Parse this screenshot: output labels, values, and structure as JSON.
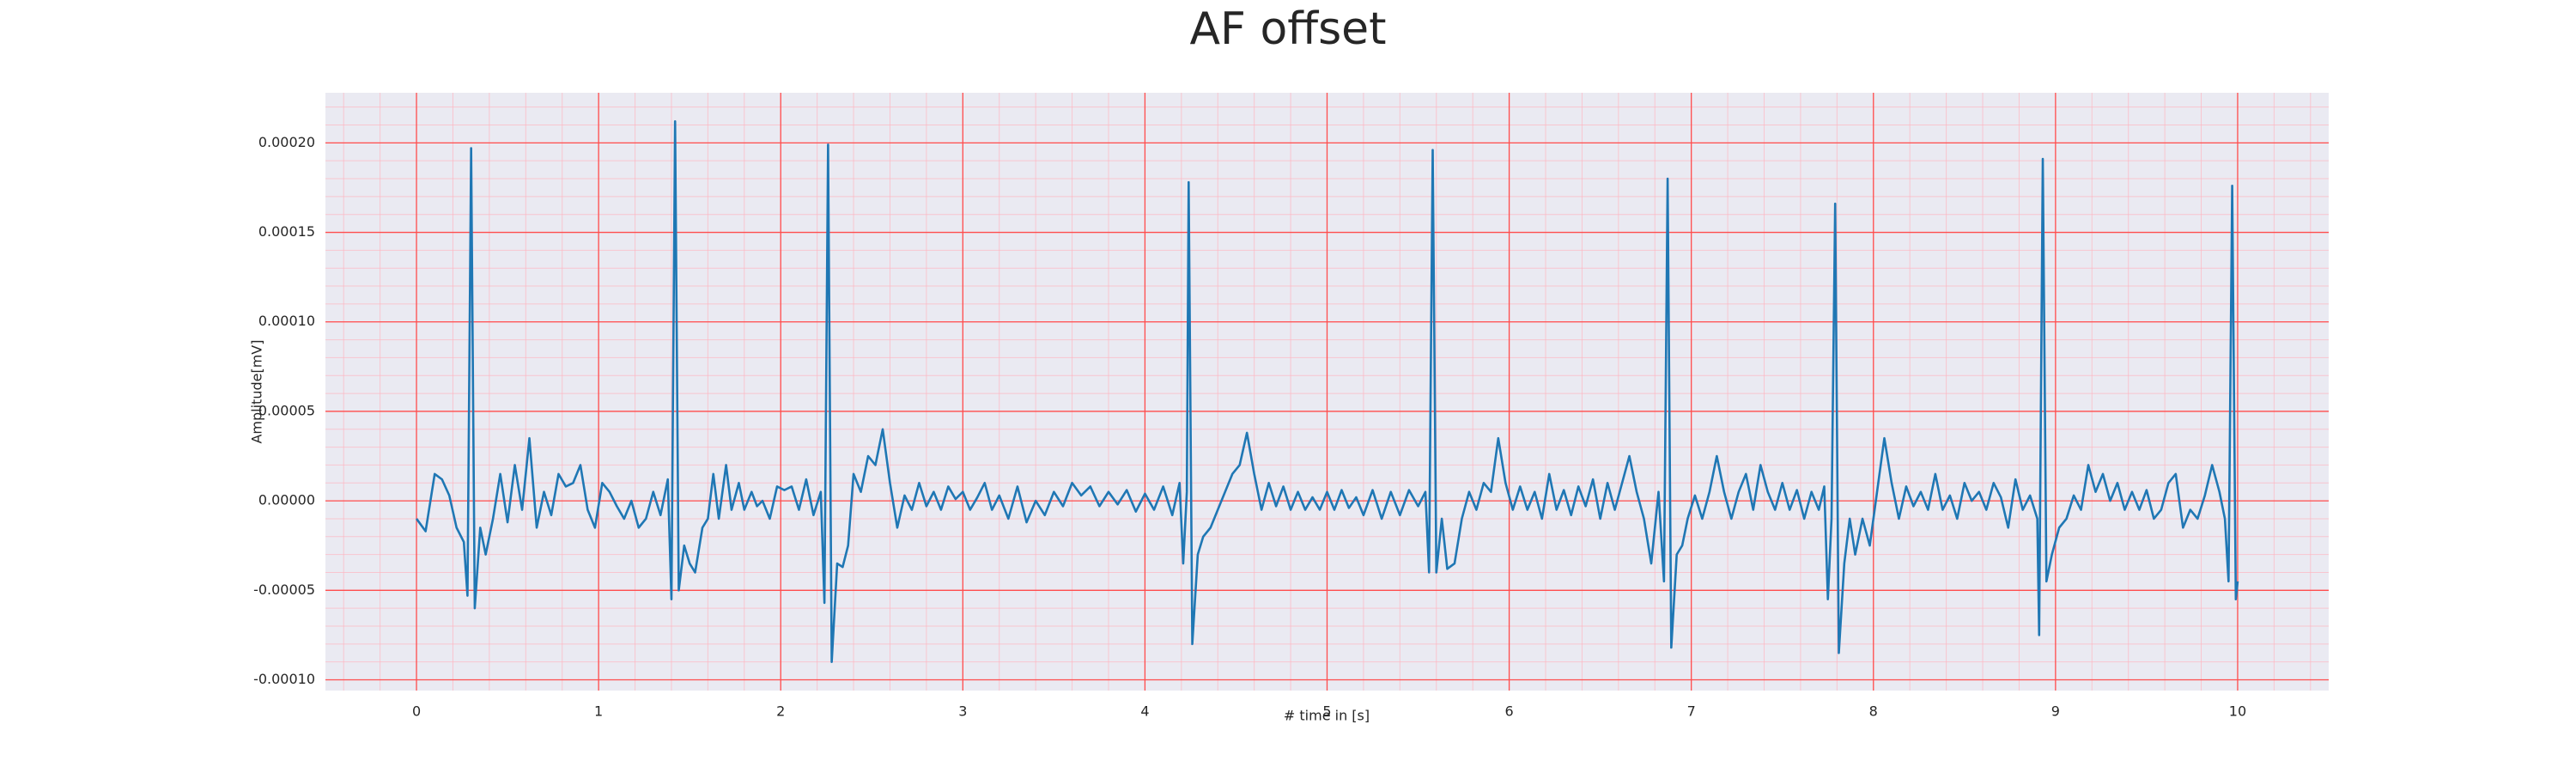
{
  "chart_data": {
    "type": "line",
    "title": "AF offset",
    "xlabel": "# time in [s]",
    "ylabel": "Amplitude[mV]",
    "color": "#1f77b4",
    "grid": true,
    "minor_grid": true,
    "xlim": [
      -0.5,
      10.5
    ],
    "xticks": [
      0,
      1,
      2,
      3,
      4,
      5,
      6,
      7,
      8,
      9,
      10
    ],
    "ylim": [
      -0.000106,
      0.000228
    ],
    "yticks": [
      {
        "value": -0.0001,
        "label": "-0.00010"
      },
      {
        "value": -5e-05,
        "label": "-0.00005"
      },
      {
        "value": 0,
        "label": "0.00000"
      },
      {
        "value": 5e-05,
        "label": "0.00005"
      },
      {
        "value": 0.0001,
        "label": "0.00010"
      },
      {
        "value": 0.00015,
        "label": "0.00015"
      },
      {
        "value": 0.0002,
        "label": "0.00020"
      }
    ],
    "x": [
      0,
      0.05,
      0.1,
      0.14,
      0.18,
      0.22,
      0.26,
      0.28,
      0.3,
      0.32,
      0.35,
      0.38,
      0.42,
      0.46,
      0.5,
      0.54,
      0.58,
      0.62,
      0.66,
      0.7,
      0.74,
      0.78,
      0.82,
      0.86,
      0.9,
      0.94,
      0.98,
      1.02,
      1.06,
      1.1,
      1.14,
      1.18,
      1.22,
      1.26,
      1.3,
      1.34,
      1.38,
      1.4,
      1.42,
      1.44,
      1.47,
      1.5,
      1.53,
      1.57,
      1.6,
      1.63,
      1.66,
      1.7,
      1.73,
      1.77,
      1.8,
      1.84,
      1.87,
      1.9,
      1.94,
      1.98,
      2.02,
      2.06,
      2.1,
      2.14,
      2.18,
      2.22,
      2.24,
      2.26,
      2.28,
      2.31,
      2.34,
      2.37,
      2.4,
      2.44,
      2.48,
      2.52,
      2.56,
      2.6,
      2.64,
      2.68,
      2.72,
      2.76,
      2.8,
      2.84,
      2.88,
      2.92,
      2.96,
      3,
      3.04,
      3.08,
      3.12,
      3.16,
      3.2,
      3.25,
      3.3,
      3.35,
      3.4,
      3.45,
      3.5,
      3.55,
      3.6,
      3.65,
      3.7,
      3.75,
      3.8,
      3.85,
      3.9,
      3.95,
      4,
      4.05,
      4.1,
      4.15,
      4.19,
      4.21,
      4.23,
      4.24,
      4.26,
      4.29,
      4.32,
      4.36,
      4.4,
      4.44,
      4.48,
      4.52,
      4.56,
      4.6,
      4.64,
      4.68,
      4.72,
      4.76,
      4.8,
      4.84,
      4.88,
      4.92,
      4.96,
      5,
      5.04,
      5.08,
      5.12,
      5.16,
      5.2,
      5.25,
      5.3,
      5.35,
      5.4,
      5.45,
      5.5,
      5.54,
      5.56,
      5.58,
      5.6,
      5.63,
      5.66,
      5.7,
      5.74,
      5.78,
      5.82,
      5.86,
      5.9,
      5.94,
      5.98,
      6.02,
      6.06,
      6.1,
      6.14,
      6.18,
      6.22,
      6.26,
      6.3,
      6.34,
      6.38,
      6.42,
      6.46,
      6.5,
      6.54,
      6.58,
      6.62,
      6.66,
      6.7,
      6.74,
      6.78,
      6.82,
      6.85,
      6.87,
      6.89,
      6.92,
      6.95,
      6.98,
      7.02,
      7.06,
      7.1,
      7.14,
      7.18,
      7.22,
      7.26,
      7.3,
      7.34,
      7.38,
      7.42,
      7.46,
      7.5,
      7.54,
      7.58,
      7.62,
      7.66,
      7.7,
      7.73,
      7.75,
      7.77,
      7.79,
      7.81,
      7.84,
      7.87,
      7.9,
      7.94,
      7.98,
      8.02,
      8.06,
      8.1,
      8.14,
      8.18,
      8.22,
      8.26,
      8.3,
      8.34,
      8.38,
      8.42,
      8.46,
      8.5,
      8.54,
      8.58,
      8.62,
      8.66,
      8.7,
      8.74,
      8.78,
      8.82,
      8.86,
      8.9,
      8.91,
      8.93,
      8.95,
      8.98,
      9.02,
      9.06,
      9.1,
      9.14,
      9.18,
      9.22,
      9.26,
      9.3,
      9.34,
      9.38,
      9.42,
      9.46,
      9.5,
      9.54,
      9.58,
      9.62,
      9.66,
      9.7,
      9.74,
      9.78,
      9.82,
      9.86,
      9.9,
      9.93,
      9.95,
      9.97,
      9.99,
      10.0
    ],
    "values": [
      -1e-05,
      -1.7e-05,
      1.5e-05,
      1.2e-05,
      3e-06,
      -1.5e-05,
      -2.3e-05,
      -5.3e-05,
      0.000197,
      -6e-05,
      -1.5e-05,
      -3e-05,
      -1e-05,
      1.5e-05,
      -1.2e-05,
      2e-05,
      -5e-06,
      3.5e-05,
      -1.5e-05,
      5e-06,
      -8e-06,
      1.5e-05,
      8e-06,
      1e-05,
      2e-05,
      -5e-06,
      -1.5e-05,
      1e-05,
      5e-06,
      -3e-06,
      -1e-05,
      0,
      -1.5e-05,
      -1e-05,
      5e-06,
      -8e-06,
      1.2e-05,
      -5.5e-05,
      0.000212,
      -5e-05,
      -2.5e-05,
      -3.5e-05,
      -4e-05,
      -1.5e-05,
      -1e-05,
      1.5e-05,
      -1e-05,
      2e-05,
      -5e-06,
      1e-05,
      -5e-06,
      5e-06,
      -3e-06,
      0,
      -1e-05,
      8e-06,
      6e-06,
      8e-06,
      -5e-06,
      1.2e-05,
      -8e-06,
      5e-06,
      -5.7e-05,
      0.000199,
      -9e-05,
      -3.5e-05,
      -3.7e-05,
      -2.5e-05,
      1.5e-05,
      5e-06,
      2.5e-05,
      2e-05,
      4e-05,
      1e-05,
      -1.5e-05,
      3e-06,
      -5e-06,
      1e-05,
      -3e-06,
      5e-06,
      -5e-06,
      8e-06,
      1e-06,
      5e-06,
      -5e-06,
      2e-06,
      1e-05,
      -5e-06,
      3e-06,
      -1e-05,
      8e-06,
      -1.2e-05,
      0,
      -8e-06,
      5e-06,
      -3e-06,
      1e-05,
      3e-06,
      8e-06,
      -3e-06,
      5e-06,
      -2e-06,
      6e-06,
      -6e-06,
      4e-06,
      -5e-06,
      8e-06,
      -8e-06,
      1e-05,
      -3.5e-05,
      5e-06,
      0.000178,
      -8e-05,
      -3e-05,
      -2e-05,
      -1.5e-05,
      -5e-06,
      5e-06,
      1.5e-05,
      2e-05,
      3.8e-05,
      1.5e-05,
      -5e-06,
      1e-05,
      -3e-06,
      8e-06,
      -5e-06,
      5e-06,
      -5e-06,
      2e-06,
      -5e-06,
      5e-06,
      -5e-06,
      6e-06,
      -4e-06,
      2e-06,
      -8e-06,
      6e-06,
      -1e-05,
      5e-06,
      -8e-06,
      6e-06,
      -3e-06,
      5e-06,
      -4e-05,
      0.000196,
      -4e-05,
      -1e-05,
      -3.8e-05,
      -3.5e-05,
      -1e-05,
      5e-06,
      -5e-06,
      1e-05,
      5e-06,
      3.5e-05,
      1e-05,
      -5e-06,
      8e-06,
      -5e-06,
      5e-06,
      -1e-05,
      1.5e-05,
      -5e-06,
      6e-06,
      -8e-06,
      8e-06,
      -3e-06,
      1.2e-05,
      -1e-05,
      1e-05,
      -5e-06,
      1e-05,
      2.5e-05,
      5e-06,
      -1e-05,
      -3.5e-05,
      5e-06,
      -4.5e-05,
      0.00018,
      -8.2e-05,
      -3e-05,
      -2.5e-05,
      -1e-05,
      3e-06,
      -1e-05,
      5e-06,
      2.5e-05,
      5e-06,
      -1e-05,
      5e-06,
      1.5e-05,
      -5e-06,
      2e-05,
      5e-06,
      -5e-06,
      1e-05,
      -5e-06,
      6e-06,
      -1e-05,
      5e-06,
      -5e-06,
      8e-06,
      -5.5e-05,
      -1e-05,
      0.000166,
      -8.5e-05,
      -3.5e-05,
      -1e-05,
      -3e-05,
      -1e-05,
      -2.5e-05,
      5e-06,
      3.5e-05,
      1e-05,
      -1e-05,
      8e-06,
      -3e-06,
      5e-06,
      -5e-06,
      1.5e-05,
      -5e-06,
      3e-06,
      -1e-05,
      1e-05,
      0,
      5e-06,
      -5e-06,
      1e-05,
      2e-06,
      -1.5e-05,
      1.2e-05,
      -5e-06,
      3e-06,
      -1e-05,
      -7.5e-05,
      0.000191,
      -4.5e-05,
      -3e-05,
      -1.5e-05,
      -1e-05,
      3e-06,
      -5e-06,
      2e-05,
      5e-06,
      1.5e-05,
      0,
      1e-05,
      -5e-06,
      5e-06,
      -5e-06,
      6e-06,
      -1e-05,
      -5e-06,
      1e-05,
      1.5e-05,
      -1.5e-05,
      -5e-06,
      -1e-05,
      3e-06,
      2e-05,
      5e-06,
      -1e-05,
      -4.5e-05,
      0.000176,
      -5.5e-05,
      -4.5e-05
    ]
  }
}
